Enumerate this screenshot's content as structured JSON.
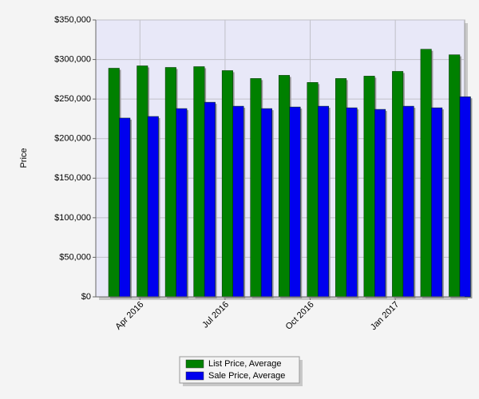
{
  "chart_data": {
    "type": "bar",
    "y_label": "Price",
    "categories": [
      null,
      "Apr 2016",
      null,
      null,
      "Jul 2016",
      null,
      null,
      "Oct 2016",
      null,
      null,
      "Jan 2017",
      null,
      null
    ],
    "series": [
      {
        "name": "List Price, Average",
        "color": "#008000",
        "values": [
          289000,
          292000,
          290000,
          291000,
          286000,
          276000,
          280000,
          271000,
          276000,
          279000,
          285000,
          313000,
          306000
        ]
      },
      {
        "name": "Sale Price, Average",
        "color": "#0000ee",
        "values": [
          226000,
          228000,
          238000,
          246000,
          241000,
          238000,
          240000,
          241000,
          239000,
          237000,
          241000,
          239000,
          253000
        ]
      }
    ],
    "ylim": [
      0,
      350000
    ],
    "yticks": [
      {
        "value": 0,
        "label": "$0"
      },
      {
        "value": 50000,
        "label": "$50,000"
      },
      {
        "value": 100000,
        "label": "$100,000"
      },
      {
        "value": 150000,
        "label": "$150,000"
      },
      {
        "value": 200000,
        "label": "$200,000"
      },
      {
        "value": 250000,
        "label": "$250,000"
      },
      {
        "value": 300000,
        "label": "$300,000"
      },
      {
        "value": 350000,
        "label": "$350,000"
      }
    ],
    "grid": true,
    "legend": "bottom"
  }
}
